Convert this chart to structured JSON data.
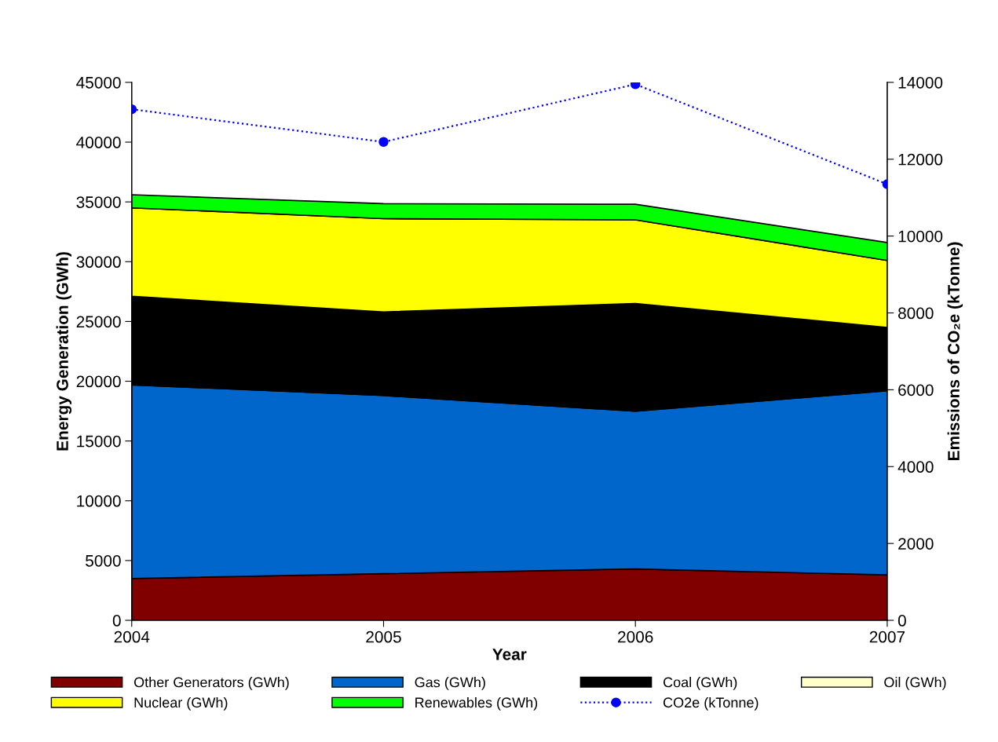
{
  "chart_data": {
    "type": "area",
    "stacked": true,
    "xlabel": "Year",
    "ylabel": "Energy Generation (GWh)",
    "y2label": "Emissions of CO₂e (kTonne)",
    "x": [
      2004,
      2005,
      2006,
      2007
    ],
    "xlim": [
      2004,
      2007
    ],
    "xticks": [
      2004,
      2005,
      2006,
      2007
    ],
    "ylim": [
      0,
      45000
    ],
    "yticks": [
      0,
      5000,
      10000,
      15000,
      20000,
      25000,
      30000,
      35000,
      40000,
      45000
    ],
    "y2lim": [
      0,
      14000
    ],
    "y2ticks": [
      0,
      2000,
      4000,
      6000,
      8000,
      10000,
      12000,
      14000
    ],
    "grid": false,
    "legend": "bottom",
    "series": [
      {
        "name": "Other Generators (GWh)",
        "color": "#800000",
        "values": [
          3500,
          3900,
          4300,
          3800
        ]
      },
      {
        "name": "Gas (GWh)",
        "color": "#0066cc",
        "values": [
          16200,
          14900,
          13200,
          15400
        ]
      },
      {
        "name": "Coal (GWh)",
        "color": "#000000",
        "values": [
          7300,
          6900,
          8900,
          5200
        ]
      },
      {
        "name": "Oil (GWh)",
        "color": "#ffffcc",
        "values": [
          100,
          100,
          100,
          100
        ]
      },
      {
        "name": "Nuclear (GWh)",
        "color": "#ffff00",
        "values": [
          7400,
          7800,
          7000,
          5600
        ]
      },
      {
        "name": "Renewables (GWh)",
        "color": "#00ff00",
        "values": [
          1100,
          1250,
          1300,
          1500
        ]
      },
      {
        "name": "CO2e (kTonne)",
        "type": "line",
        "axis": "y2",
        "color": "#0000ff",
        "marker": "circle",
        "line_style": "dotted",
        "values": [
          13300,
          12450,
          13950,
          11350
        ]
      }
    ]
  }
}
